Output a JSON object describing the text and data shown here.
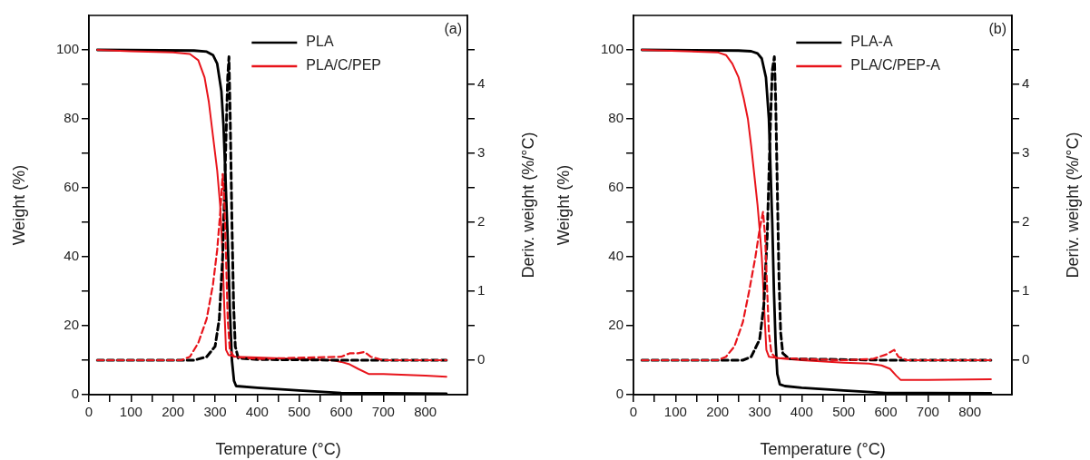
{
  "chart_data": [
    {
      "type": "line",
      "xlabel": "Temperature (°C)",
      "ylabel": "Weight (%)",
      "y2label": "Deriv. weight (%/°C)",
      "annotations": [
        "(a)"
      ],
      "legend": "top",
      "grid": false,
      "xlim": [
        0,
        900
      ],
      "xticks": [
        0,
        {
          "value": 50,
          "label": null
        },
        100,
        {
          "value": 150,
          "label": null
        },
        200,
        {
          "value": 250,
          "label": null
        },
        300,
        {
          "value": 350,
          "label": null
        },
        400,
        {
          "value": 450,
          "label": null
        },
        500,
        {
          "value": 550,
          "label": null
        },
        600,
        {
          "value": 650,
          "label": null
        },
        700,
        {
          "value": 750,
          "label": null
        },
        800
      ],
      "ylim": [
        0,
        110
      ],
      "yticks": [
        0,
        {
          "value": 10,
          "label": null
        },
        20,
        {
          "value": 30,
          "label": null
        },
        40,
        {
          "value": 50,
          "label": null
        },
        60,
        {
          "value": 70,
          "label": null
        },
        80,
        {
          "value": 90,
          "label": null
        },
        100
      ],
      "y2lim": [
        -0.5,
        5
      ],
      "y2ticks": [
        0,
        {
          "value": 0.5,
          "label": null
        },
        1,
        {
          "value": 1.5,
          "label": null
        },
        2,
        {
          "value": 2.5,
          "label": null
        },
        3,
        {
          "value": 3.5,
          "label": null
        },
        4,
        {
          "value": 4.5,
          "label": null
        }
      ],
      "series": [
        {
          "name": "PLA",
          "color": "#000000",
          "line_style": "solid",
          "x": [
            20,
            250,
            280,
            295,
            305,
            315,
            320,
            325,
            330,
            335,
            340,
            345,
            350,
            400,
            500,
            600,
            700,
            850
          ],
          "values": [
            100,
            99.8,
            99.5,
            98.5,
            96,
            88,
            78,
            62,
            45,
            25,
            10,
            4,
            2.5,
            2,
            1.2,
            0.5,
            0.4,
            0.3
          ]
        },
        {
          "name": "PLA/C/PEP",
          "color": "#e8141b",
          "line_style": "solid",
          "x": [
            20,
            100,
            200,
            240,
            260,
            275,
            285,
            295,
            305,
            312,
            318,
            322,
            326,
            332,
            350,
            400,
            500,
            580,
            600,
            620,
            640,
            665,
            700,
            800,
            850
          ],
          "values": [
            100,
            99.6,
            99.3,
            98.8,
            97,
            92,
            85,
            75,
            65,
            55,
            40,
            25,
            13,
            11.5,
            11,
            10.8,
            10.3,
            10,
            9.5,
            8.8,
            7.5,
            6,
            6,
            5.5,
            5.2
          ]
        },
        {
          "color": "#000000",
          "axis": "y2",
          "line_style": "dashed",
          "x": [
            20,
            250,
            280,
            300,
            310,
            318,
            325,
            330,
            333,
            336,
            340,
            344,
            348,
            355,
            400,
            600,
            850
          ],
          "values": [
            0,
            0,
            0.05,
            0.2,
            0.6,
            1.5,
            3,
            4.1,
            4.4,
            3.5,
            2,
            0.8,
            0.2,
            0.03,
            0.01,
            0,
            0
          ]
        },
        {
          "color": "#e8141b",
          "axis": "y2",
          "line_style": "dashed",
          "x": [
            20,
            220,
            240,
            260,
            280,
            295,
            305,
            313,
            318,
            322,
            326,
            330,
            335,
            345,
            400,
            600,
            620,
            640,
            655,
            670,
            700,
            850
          ],
          "values": [
            0,
            0,
            0.05,
            0.25,
            0.6,
            1.1,
            1.6,
            2.2,
            2.7,
            2.3,
            1.5,
            0.6,
            0.15,
            0.05,
            0.02,
            0.05,
            0.1,
            0.1,
            0.12,
            0.05,
            0,
            0
          ]
        }
      ]
    },
    {
      "type": "line",
      "xlabel": "Temperature (°C)",
      "ylabel": "Weight (%)",
      "y2label": "Deriv. weight (%/°C)",
      "annotations": [
        "(b)"
      ],
      "legend": "top",
      "grid": false,
      "xlim": [
        0,
        900
      ],
      "xticks": [
        0,
        {
          "value": 50,
          "label": null
        },
        100,
        {
          "value": 150,
          "label": null
        },
        200,
        {
          "value": 250,
          "label": null
        },
        300,
        {
          "value": 350,
          "label": null
        },
        400,
        {
          "value": 450,
          "label": null
        },
        500,
        {
          "value": 550,
          "label": null
        },
        600,
        {
          "value": 650,
          "label": null
        },
        700,
        {
          "value": 750,
          "label": null
        },
        800
      ],
      "ylim": [
        0,
        110
      ],
      "yticks": [
        0,
        {
          "value": 10,
          "label": null
        },
        20,
        {
          "value": 30,
          "label": null
        },
        40,
        {
          "value": 50,
          "label": null
        },
        60,
        {
          "value": 70,
          "label": null
        },
        80,
        {
          "value": 90,
          "label": null
        },
        100
      ],
      "y2lim": [
        -0.5,
        5
      ],
      "y2ticks": [
        0,
        {
          "value": 0.5,
          "label": null
        },
        1,
        {
          "value": 1.5,
          "label": null
        },
        2,
        {
          "value": 2.5,
          "label": null
        },
        3,
        {
          "value": 3.5,
          "label": null
        },
        4,
        {
          "value": 4.5,
          "label": null
        }
      ],
      "series": [
        {
          "name": "PLA-A",
          "color": "#000000",
          "line_style": "solid",
          "x": [
            20,
            250,
            280,
            295,
            305,
            315,
            322,
            326,
            330,
            334,
            338,
            342,
            348,
            360,
            400,
            500,
            600,
            700,
            850
          ],
          "values": [
            100,
            99.8,
            99.6,
            99,
            97.5,
            92,
            80,
            65,
            50,
            30,
            15,
            6,
            3,
            2.5,
            2,
            1.2,
            0.5,
            0.5,
            0.4
          ]
        },
        {
          "name": "PLA/C/PEP-A",
          "color": "#e8141b",
          "line_style": "solid",
          "x": [
            20,
            200,
            220,
            235,
            250,
            262,
            272,
            280,
            288,
            295,
            300,
            305,
            308,
            312,
            316,
            322,
            350,
            400,
            500,
            560,
            590,
            610,
            625,
            635,
            700,
            850
          ],
          "values": [
            100,
            99.3,
            98.5,
            96,
            92,
            86,
            80,
            72,
            63,
            55,
            48,
            40,
            33,
            22,
            13,
            11,
            10.5,
            10,
            9.3,
            9,
            8.5,
            7.5,
            5.5,
            4.3,
            4.3,
            4.5
          ]
        },
        {
          "color": "#000000",
          "axis": "y2",
          "line_style": "dashed",
          "x": [
            20,
            260,
            280,
            300,
            310,
            318,
            325,
            330,
            335,
            338,
            342,
            346,
            350,
            355,
            370,
            600,
            850
          ],
          "values": [
            0,
            0,
            0.05,
            0.3,
            0.8,
            1.8,
            3.3,
            4.2,
            4.4,
            3.8,
            2.5,
            1.2,
            0.4,
            0.1,
            0.02,
            0,
            0
          ]
        },
        {
          "color": "#e8141b",
          "axis": "y2",
          "line_style": "dashed",
          "x": [
            20,
            200,
            220,
            240,
            260,
            275,
            290,
            300,
            308,
            313,
            318,
            322,
            328,
            340,
            500,
            570,
            600,
            620,
            630,
            650,
            850
          ],
          "values": [
            0,
            0,
            0.05,
            0.2,
            0.55,
            1,
            1.5,
            1.9,
            2.15,
            1.8,
            1,
            0.4,
            0.1,
            0.03,
            0,
            0.02,
            0.08,
            0.15,
            0.05,
            0,
            0
          ]
        }
      ]
    }
  ]
}
